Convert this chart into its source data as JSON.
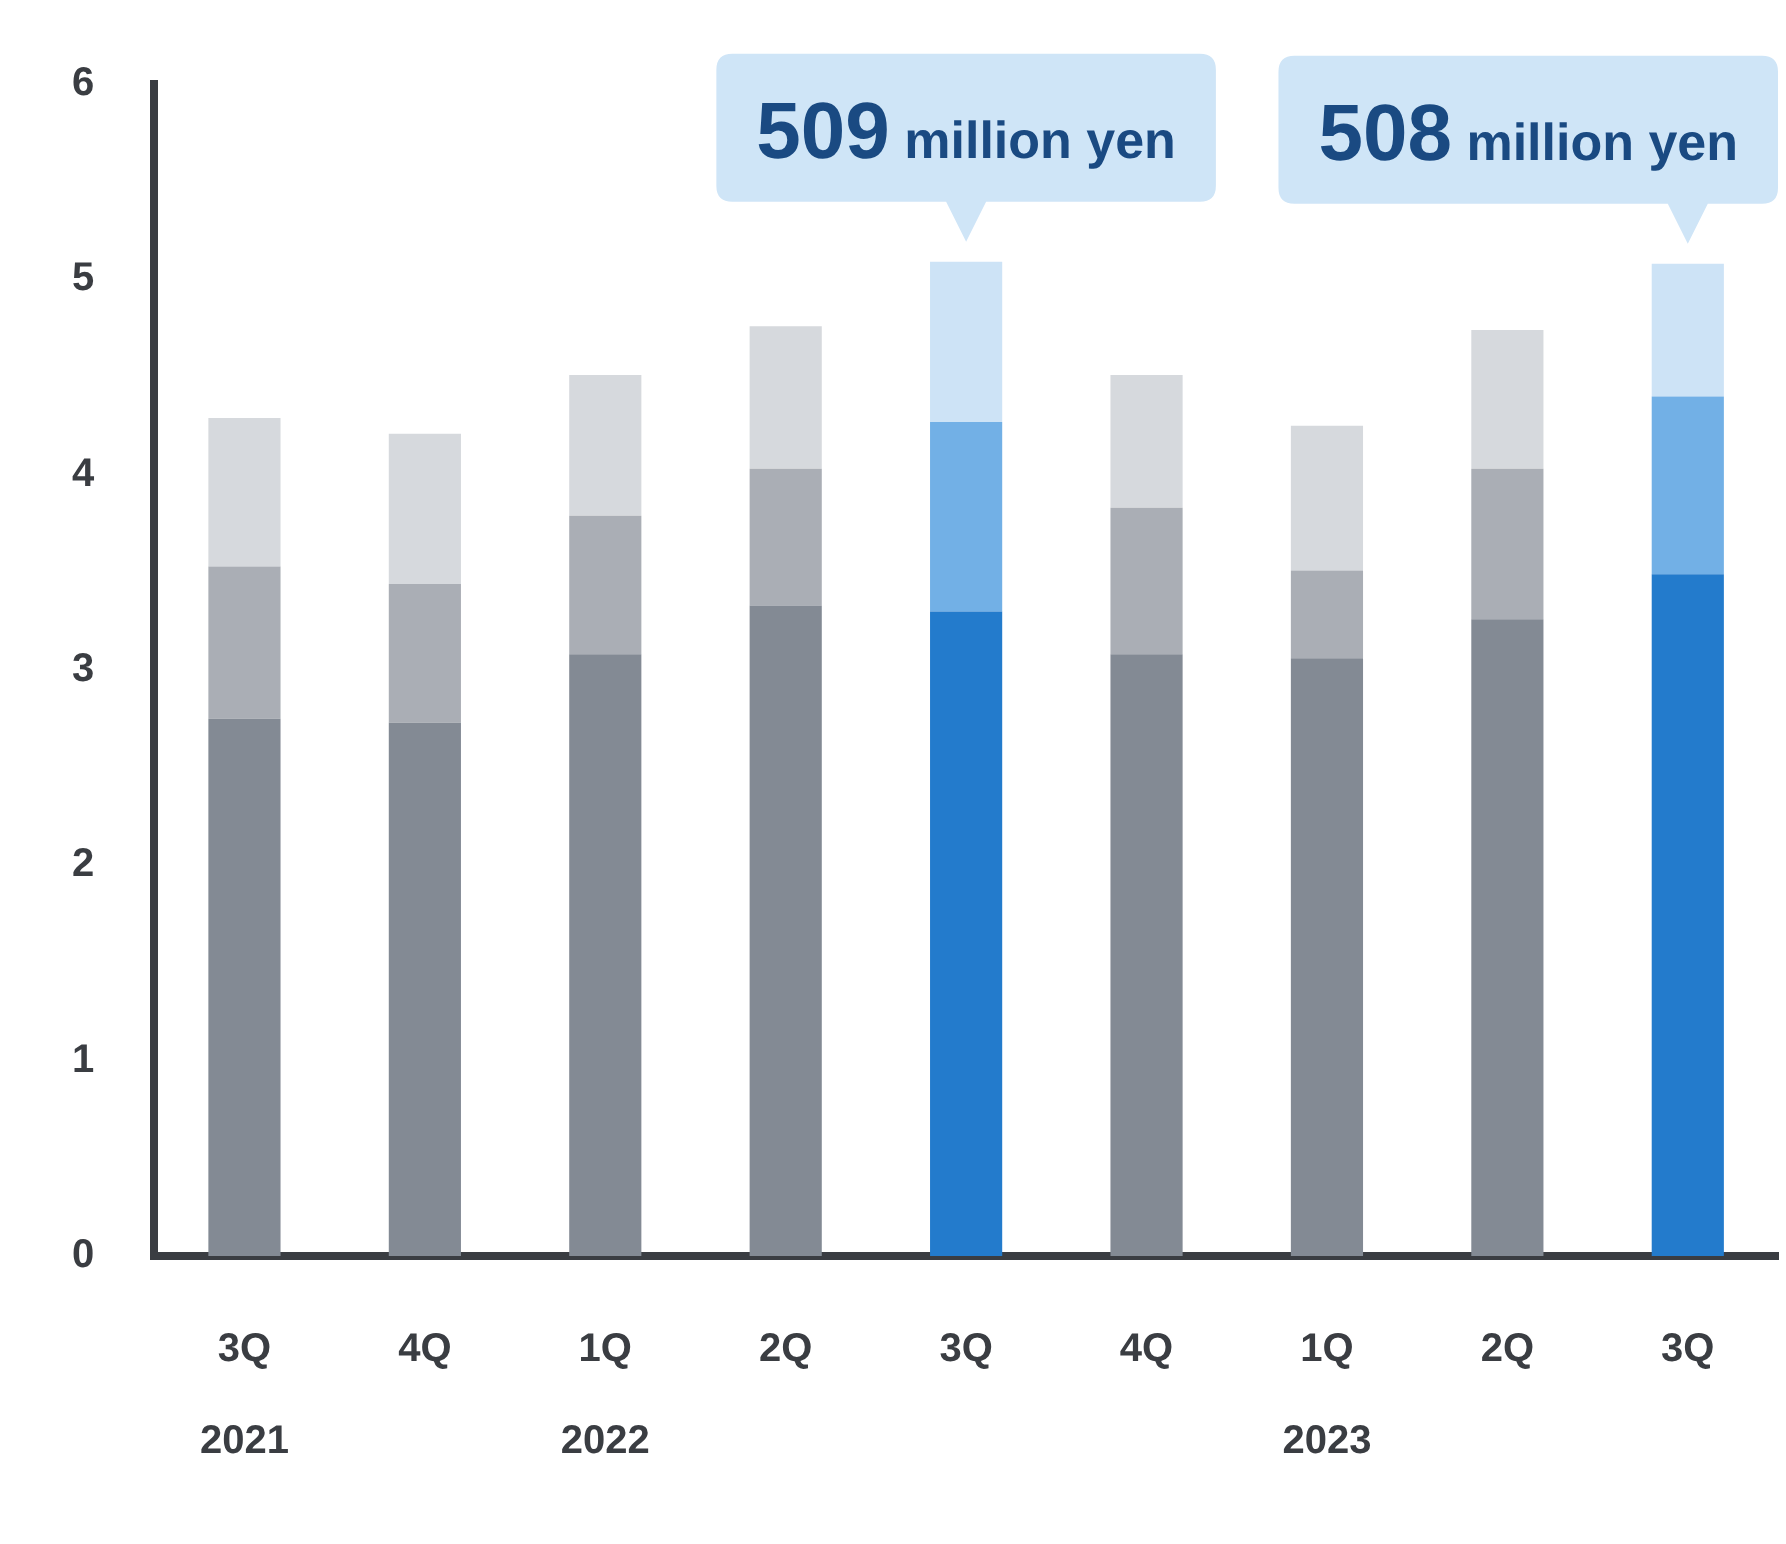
{
  "chart_data": {
    "type": "bar",
    "stacked": true,
    "categories": [
      "3Q\n2021",
      "4Q",
      "1Q\n2022",
      "2Q",
      "3Q",
      "4Q",
      "1Q\n2023",
      "2Q",
      "3Q"
    ],
    "series": [
      {
        "color": "#838a94",
        "colors": [
          "#838a94",
          "#838a94",
          "#838a94",
          "#838a94",
          "#237bcc",
          "#838a94",
          "#838a94",
          "#838a94",
          "#237bcc"
        ],
        "values": [
          2.75,
          2.73,
          3.08,
          3.33,
          3.3,
          3.08,
          3.06,
          3.26,
          3.49
        ]
      },
      {
        "color": "#aaaeb5",
        "colors": [
          "#aaaeb5",
          "#aaaeb5",
          "#aaaeb5",
          "#aaaeb5",
          "#72b0e6",
          "#aaaeb5",
          "#aaaeb5",
          "#aaaeb5",
          "#72b0e6"
        ],
        "values": [
          0.78,
          0.71,
          0.71,
          0.7,
          0.97,
          0.75,
          0.45,
          0.77,
          0.91
        ]
      },
      {
        "color": "#d6d9dd",
        "colors": [
          "#d6d9dd",
          "#d6d9dd",
          "#d6d9dd",
          "#d6d9dd",
          "#cde3f6",
          "#d6d9dd",
          "#d6d9dd",
          "#d6d9dd",
          "#cde3f6"
        ],
        "values": [
          0.76,
          0.77,
          0.72,
          0.73,
          0.82,
          0.68,
          0.74,
          0.71,
          0.68
        ]
      }
    ],
    "ylim": [
      0,
      6
    ],
    "yticks": [
      0,
      1,
      2,
      3,
      4,
      5,
      6
    ],
    "grid": false,
    "legend": false,
    "annotations": [
      "509 million yen",
      "508 million yen"
    ]
  }
}
